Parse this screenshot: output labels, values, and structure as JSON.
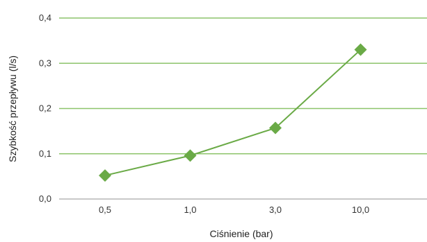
{
  "chart_data": {
    "type": "line",
    "categories": [
      "0,5",
      "1,0",
      "3,0",
      "10,0"
    ],
    "values": [
      0.052,
      0.096,
      0.157,
      0.33
    ],
    "xlabel": "Ciśnienie (bar)",
    "ylabel": "Szybkość przepływu (l/s)",
    "ylim": [
      0.0,
      0.4
    ],
    "yticks": [
      "0,0",
      "0,1",
      "0,2",
      "0,3",
      "0,4"
    ],
    "grid": true,
    "line_color": "#6aaa46",
    "marker_color": "#6aaa46",
    "grid_color": "#8cc36a",
    "marker": "diamond"
  }
}
